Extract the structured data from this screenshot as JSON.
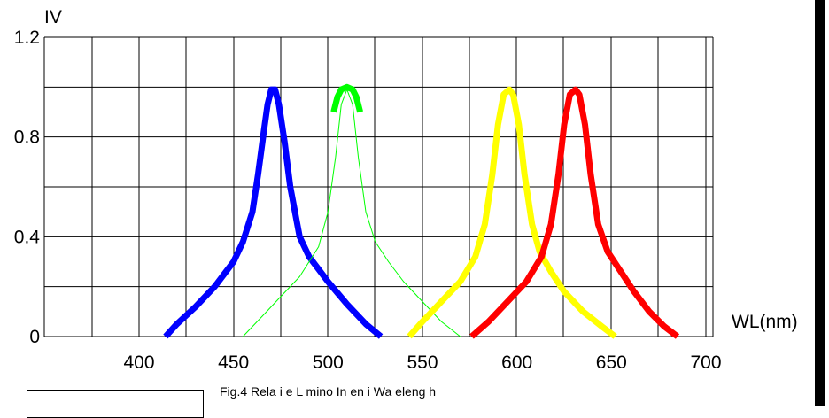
{
  "chart_data": {
    "type": "line",
    "xlabel": "WL(nm)",
    "ylabel": "IV",
    "caption": "Fig.4 Rela i e L mino In en i Wa eleng h",
    "xlim": [
      400,
      700
    ],
    "ylim": [
      0,
      1.2
    ],
    "x_ticks": [
      "400",
      "450",
      "500",
      "550",
      "600",
      "650",
      "700"
    ],
    "y_ticks": [
      "1.2",
      "0.8",
      "0.4",
      "0"
    ],
    "grid": true,
    "series": [
      {
        "color": "#0000ff",
        "stroke": "thick",
        "x": [
          414,
          420,
          430,
          440,
          450,
          455,
          460,
          463,
          466,
          468,
          470,
          472,
          474,
          477,
          480,
          485,
          490,
          500,
          510,
          520,
          528
        ],
        "y": [
          0.0,
          0.05,
          0.12,
          0.2,
          0.3,
          0.38,
          0.5,
          0.65,
          0.82,
          0.93,
          0.99,
          0.99,
          0.93,
          0.78,
          0.6,
          0.4,
          0.32,
          0.22,
          0.13,
          0.05,
          0.0
        ]
      },
      {
        "color": "#00ff00",
        "stroke": "thin",
        "x": [
          455,
          465,
          475,
          485,
          495,
          500,
          504,
          507,
          510,
          513,
          516,
          520,
          525,
          532,
          540,
          550,
          560,
          570
        ],
        "y": [
          0.0,
          0.08,
          0.16,
          0.24,
          0.36,
          0.5,
          0.72,
          0.93,
          0.99,
          0.93,
          0.72,
          0.5,
          0.38,
          0.3,
          0.22,
          0.14,
          0.06,
          0.0
        ]
      },
      {
        "color": "#00ff00",
        "stroke": "thick",
        "x": [
          503,
          505,
          507,
          510,
          513,
          515,
          517
        ],
        "y": [
          0.9,
          0.96,
          0.99,
          1.0,
          0.99,
          0.96,
          0.9
        ]
      },
      {
        "color": "#ffff00",
        "stroke": "thick",
        "x": [
          543,
          550,
          560,
          570,
          578,
          583,
          587,
          590,
          593,
          596,
          598,
          601,
          604,
          608,
          612,
          618,
          625,
          635,
          645,
          652
        ],
        "y": [
          0.0,
          0.06,
          0.14,
          0.22,
          0.32,
          0.45,
          0.65,
          0.85,
          0.97,
          0.99,
          0.97,
          0.85,
          0.65,
          0.45,
          0.34,
          0.26,
          0.18,
          0.1,
          0.04,
          0.0
        ]
      },
      {
        "color": "#ff0000",
        "stroke": "thick",
        "x": [
          576,
          585,
          595,
          605,
          613,
          618,
          622,
          625,
          628,
          631,
          633,
          636,
          639,
          643,
          648,
          655,
          662,
          670,
          678,
          685
        ],
        "y": [
          0.0,
          0.06,
          0.14,
          0.22,
          0.32,
          0.45,
          0.65,
          0.85,
          0.97,
          0.99,
          0.97,
          0.85,
          0.65,
          0.45,
          0.34,
          0.26,
          0.18,
          0.1,
          0.04,
          0.0
        ]
      }
    ]
  }
}
